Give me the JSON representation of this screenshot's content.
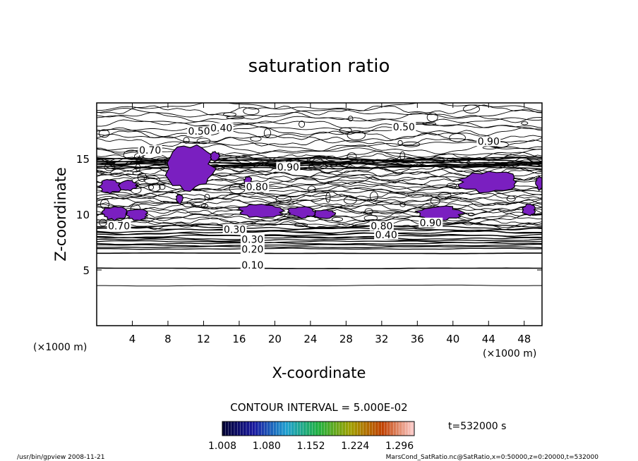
{
  "chart_data": {
    "type": "contour",
    "title": "saturation ratio",
    "xlabel": "X-coordinate",
    "ylabel": "Z-coordinate",
    "x_unit": "(×1000 m)",
    "y_unit": "(×1000 m)",
    "xlim": [
      0,
      50
    ],
    "ylim": [
      0,
      20
    ],
    "x_ticks": [
      4,
      8,
      12,
      16,
      20,
      24,
      28,
      32,
      36,
      40,
      44,
      48
    ],
    "y_ticks": [
      5,
      10,
      15
    ],
    "contour_interval_text": "CONTOUR INTERVAL = 5.000E-02",
    "time_text": "t=532000 s",
    "colorbar": {
      "labels": [
        "1.008",
        "1.080",
        "1.152",
        "1.224",
        "1.296"
      ],
      "min": 1.008,
      "max": 1.32,
      "colors": [
        "#000030",
        "#1a1aa0",
        "#20a0d0",
        "#20b040",
        "#a0a000",
        "#c04000",
        "#ffd0d0"
      ]
    },
    "fill_color": "#7a1fc0",
    "labeled_levels": [
      {
        "value": "0.10",
        "x": 17.5,
        "z": 5.2
      },
      {
        "value": "0.20",
        "x": 17.5,
        "z": 6.6
      },
      {
        "value": "0.30",
        "x": 17.5,
        "z": 7.5
      },
      {
        "value": "0.30",
        "x": 15.5,
        "z": 8.4
      },
      {
        "value": "0.40",
        "x": 32.5,
        "z": 7.9
      },
      {
        "value": "0.50",
        "x": 11.5,
        "z": 17.2
      },
      {
        "value": "0.40",
        "x": 14.0,
        "z": 17.5
      },
      {
        "value": "0.50",
        "x": 34.5,
        "z": 17.6
      },
      {
        "value": "0.90",
        "x": 44.0,
        "z": 16.3
      },
      {
        "value": "0.70",
        "x": 6.0,
        "z": 15.5
      },
      {
        "value": "0.90",
        "x": 21.5,
        "z": 14.0
      },
      {
        "value": "0.80",
        "x": 18.0,
        "z": 12.2
      },
      {
        "value": "0.80",
        "x": 32.0,
        "z": 8.7
      },
      {
        "value": "0.90",
        "x": 37.5,
        "z": 9.0
      },
      {
        "value": "0.70",
        "x": 2.5,
        "z": 8.7
      }
    ],
    "footer_left": "/usr/bin/gpview   2008-11-21",
    "footer_right": "MarsCond_SatRatio.nc@SatRatio,x=0:50000,z=0:20000,t=532000"
  }
}
